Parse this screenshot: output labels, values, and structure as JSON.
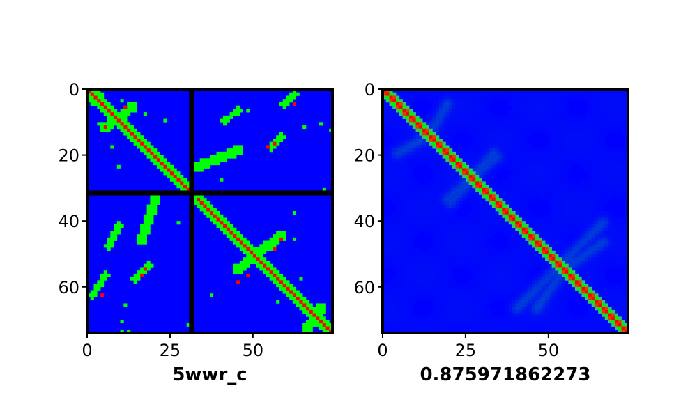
{
  "chart_data": [
    {
      "type": "heatmap",
      "name": "left-contact-map",
      "xlabel": "5wwr_c",
      "size": 74,
      "xticks": [
        0,
        25,
        50
      ],
      "yticks": [
        0,
        20,
        40,
        60
      ],
      "separator_index": 31.5,
      "colors": {
        "background": "#0000ff",
        "contact": "#00ff00",
        "diagonal": "#ff0000",
        "separator": "#000000"
      },
      "contact_regions": [
        {
          "kind": "diagonal_band",
          "from": [
            0,
            0
          ],
          "to": [
            30,
            30
          ],
          "width": 3
        },
        {
          "kind": "diagonal_band",
          "from": [
            33,
            33
          ],
          "to": [
            73,
            73
          ],
          "width": 3
        },
        {
          "kind": "anti_band",
          "from": [
            11,
            5
          ],
          "to": [
            5,
            13
          ],
          "width": 3
        },
        {
          "kind": "anti_band",
          "from": [
            3,
            1
          ],
          "to": [
            1,
            3
          ],
          "width": 2
        },
        {
          "kind": "anti_band",
          "from": [
            23,
            33
          ],
          "to": [
            18,
            45
          ],
          "width": 3
        },
        {
          "kind": "anti_band",
          "from": [
            9,
            41
          ],
          "to": [
            6,
            45
          ],
          "width": 2
        },
        {
          "kind": "anti_band",
          "from": [
            4,
            59
          ],
          "to": [
            1,
            62
          ],
          "width": 2
        },
        {
          "kind": "anti_band",
          "from": [
            17,
            55
          ],
          "to": [
            14,
            58
          ],
          "width": 2
        },
        {
          "kind": "anti_band",
          "from": [
            33,
            20
          ],
          "to": [
            45,
            16
          ],
          "width": 3
        },
        {
          "kind": "anti_band",
          "from": [
            41,
            9
          ],
          "to": [
            47,
            6
          ],
          "width": 2
        },
        {
          "kind": "anti_band",
          "from": [
            56,
            5
          ],
          "to": [
            62,
            1
          ],
          "width": 2
        },
        {
          "kind": "anti_band",
          "from": [
            53,
            18
          ],
          "to": [
            57,
            14
          ],
          "width": 2
        },
        {
          "kind": "anti_band",
          "from": [
            54,
            45
          ],
          "to": [
            44,
            58
          ],
          "width": 3
        },
        {
          "kind": "anti_band",
          "from": [
            66,
            70
          ],
          "to": [
            72,
            66
          ],
          "width": 3
        }
      ],
      "red_points": [
        [
          11,
          5
        ],
        [
          5,
          11
        ],
        [
          45,
          58
        ],
        [
          58,
          45
        ],
        [
          56,
          48
        ],
        [
          48,
          56
        ],
        [
          62,
          4
        ],
        [
          4,
          62
        ],
        [
          16,
          56
        ],
        [
          56,
          16
        ],
        [
          54,
          17
        ],
        [
          17,
          54
        ]
      ],
      "sparse_points": [
        [
          23,
          9
        ],
        [
          9,
          23
        ],
        [
          17,
          7
        ],
        [
          7,
          17
        ],
        [
          6,
          48
        ],
        [
          48,
          6
        ],
        [
          31,
          28
        ],
        [
          40,
          27
        ],
        [
          27,
          40
        ],
        [
          45,
          62
        ],
        [
          64,
          57
        ],
        [
          57,
          64
        ],
        [
          70,
          10
        ],
        [
          10,
          70
        ],
        [
          65,
          11
        ],
        [
          11,
          65
        ],
        [
          71,
          30
        ],
        [
          30,
          71
        ],
        [
          73,
          10
        ],
        [
          10,
          3
        ],
        [
          3,
          10
        ],
        [
          12,
          73
        ],
        [
          73,
          12
        ],
        [
          37,
          62
        ],
        [
          62,
          37
        ]
      ]
    },
    {
      "type": "heatmap",
      "name": "right-predicted-map",
      "xlabel": "0.875971862273",
      "size": 74,
      "xticks": [
        0,
        25,
        50
      ],
      "yticks": [
        0,
        20,
        40,
        60
      ],
      "colors": {
        "background": "#0000ff",
        "contact": "#00ff00",
        "diagonal": "#ff0000"
      },
      "contact_regions": [
        {
          "kind": "diagonal_band",
          "from": [
            0,
            0
          ],
          "to": [
            73,
            73
          ],
          "width": 3
        }
      ],
      "faint_regions": [
        {
          "from": [
            4,
            19
          ],
          "to": [
            11,
            15
          ],
          "width": 1.2
        },
        {
          "from": [
            19,
            4
          ],
          "to": [
            15,
            11
          ],
          "width": 1.2
        },
        {
          "from": [
            19,
            33
          ],
          "to": [
            34,
            20
          ],
          "width": 1.2
        },
        {
          "from": [
            33,
            19
          ],
          "to": [
            20,
            34
          ],
          "width": 1.2
        },
        {
          "from": [
            40,
            66
          ],
          "to": [
            66,
            40
          ],
          "width": 1.2
        },
        {
          "from": [
            53,
            55
          ],
          "to": [
            66,
            46
          ],
          "width": 1.2
        },
        {
          "from": [
            55,
            53
          ],
          "to": [
            46,
            66
          ],
          "width": 1.2
        }
      ]
    }
  ]
}
